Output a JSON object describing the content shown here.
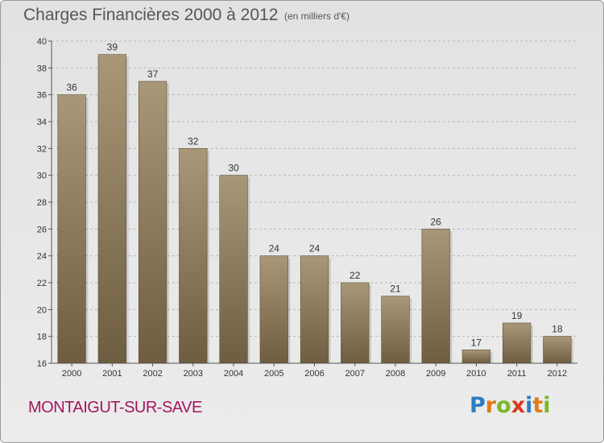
{
  "title": "Charges Financières 2000 à 2012",
  "subtitle": "(en milliers d'€)",
  "location": "MONTAIGUT-SUR-SAVE",
  "logo": {
    "text": "Proxiti",
    "letters": [
      {
        "ch": "P",
        "color": "#2e7dc4"
      },
      {
        "ch": "r",
        "color": "#e07b1a"
      },
      {
        "ch": "o",
        "color": "#7ab829"
      },
      {
        "ch": "x",
        "color": "#d63a1e"
      },
      {
        "ch": "i",
        "color": "#2e7dc4"
      },
      {
        "ch": "t",
        "color": "#e07b1a"
      },
      {
        "ch": "i",
        "color": "#7ab829"
      }
    ]
  },
  "colors": {
    "bar_top": "#a89878",
    "bar_bottom": "#6e5d40",
    "bar_edge": "#5e4f36",
    "grid": "#b8b8b8"
  },
  "chart_data": {
    "type": "bar",
    "title": "Charges Financières 2000 à 2012",
    "subtitle": "(en milliers d'€)",
    "categories": [
      "2000",
      "2001",
      "2002",
      "2003",
      "2004",
      "2005",
      "2006",
      "2007",
      "2008",
      "2009",
      "2010",
      "2011",
      "2012"
    ],
    "values": [
      36,
      39,
      37,
      32,
      30,
      24,
      24,
      22,
      21,
      26,
      17,
      19,
      18
    ],
    "ylim": [
      16,
      40
    ],
    "yticks": [
      16,
      18,
      20,
      22,
      24,
      26,
      28,
      30,
      32,
      34,
      36,
      38,
      40
    ],
    "grid": true,
    "legend": "none"
  }
}
